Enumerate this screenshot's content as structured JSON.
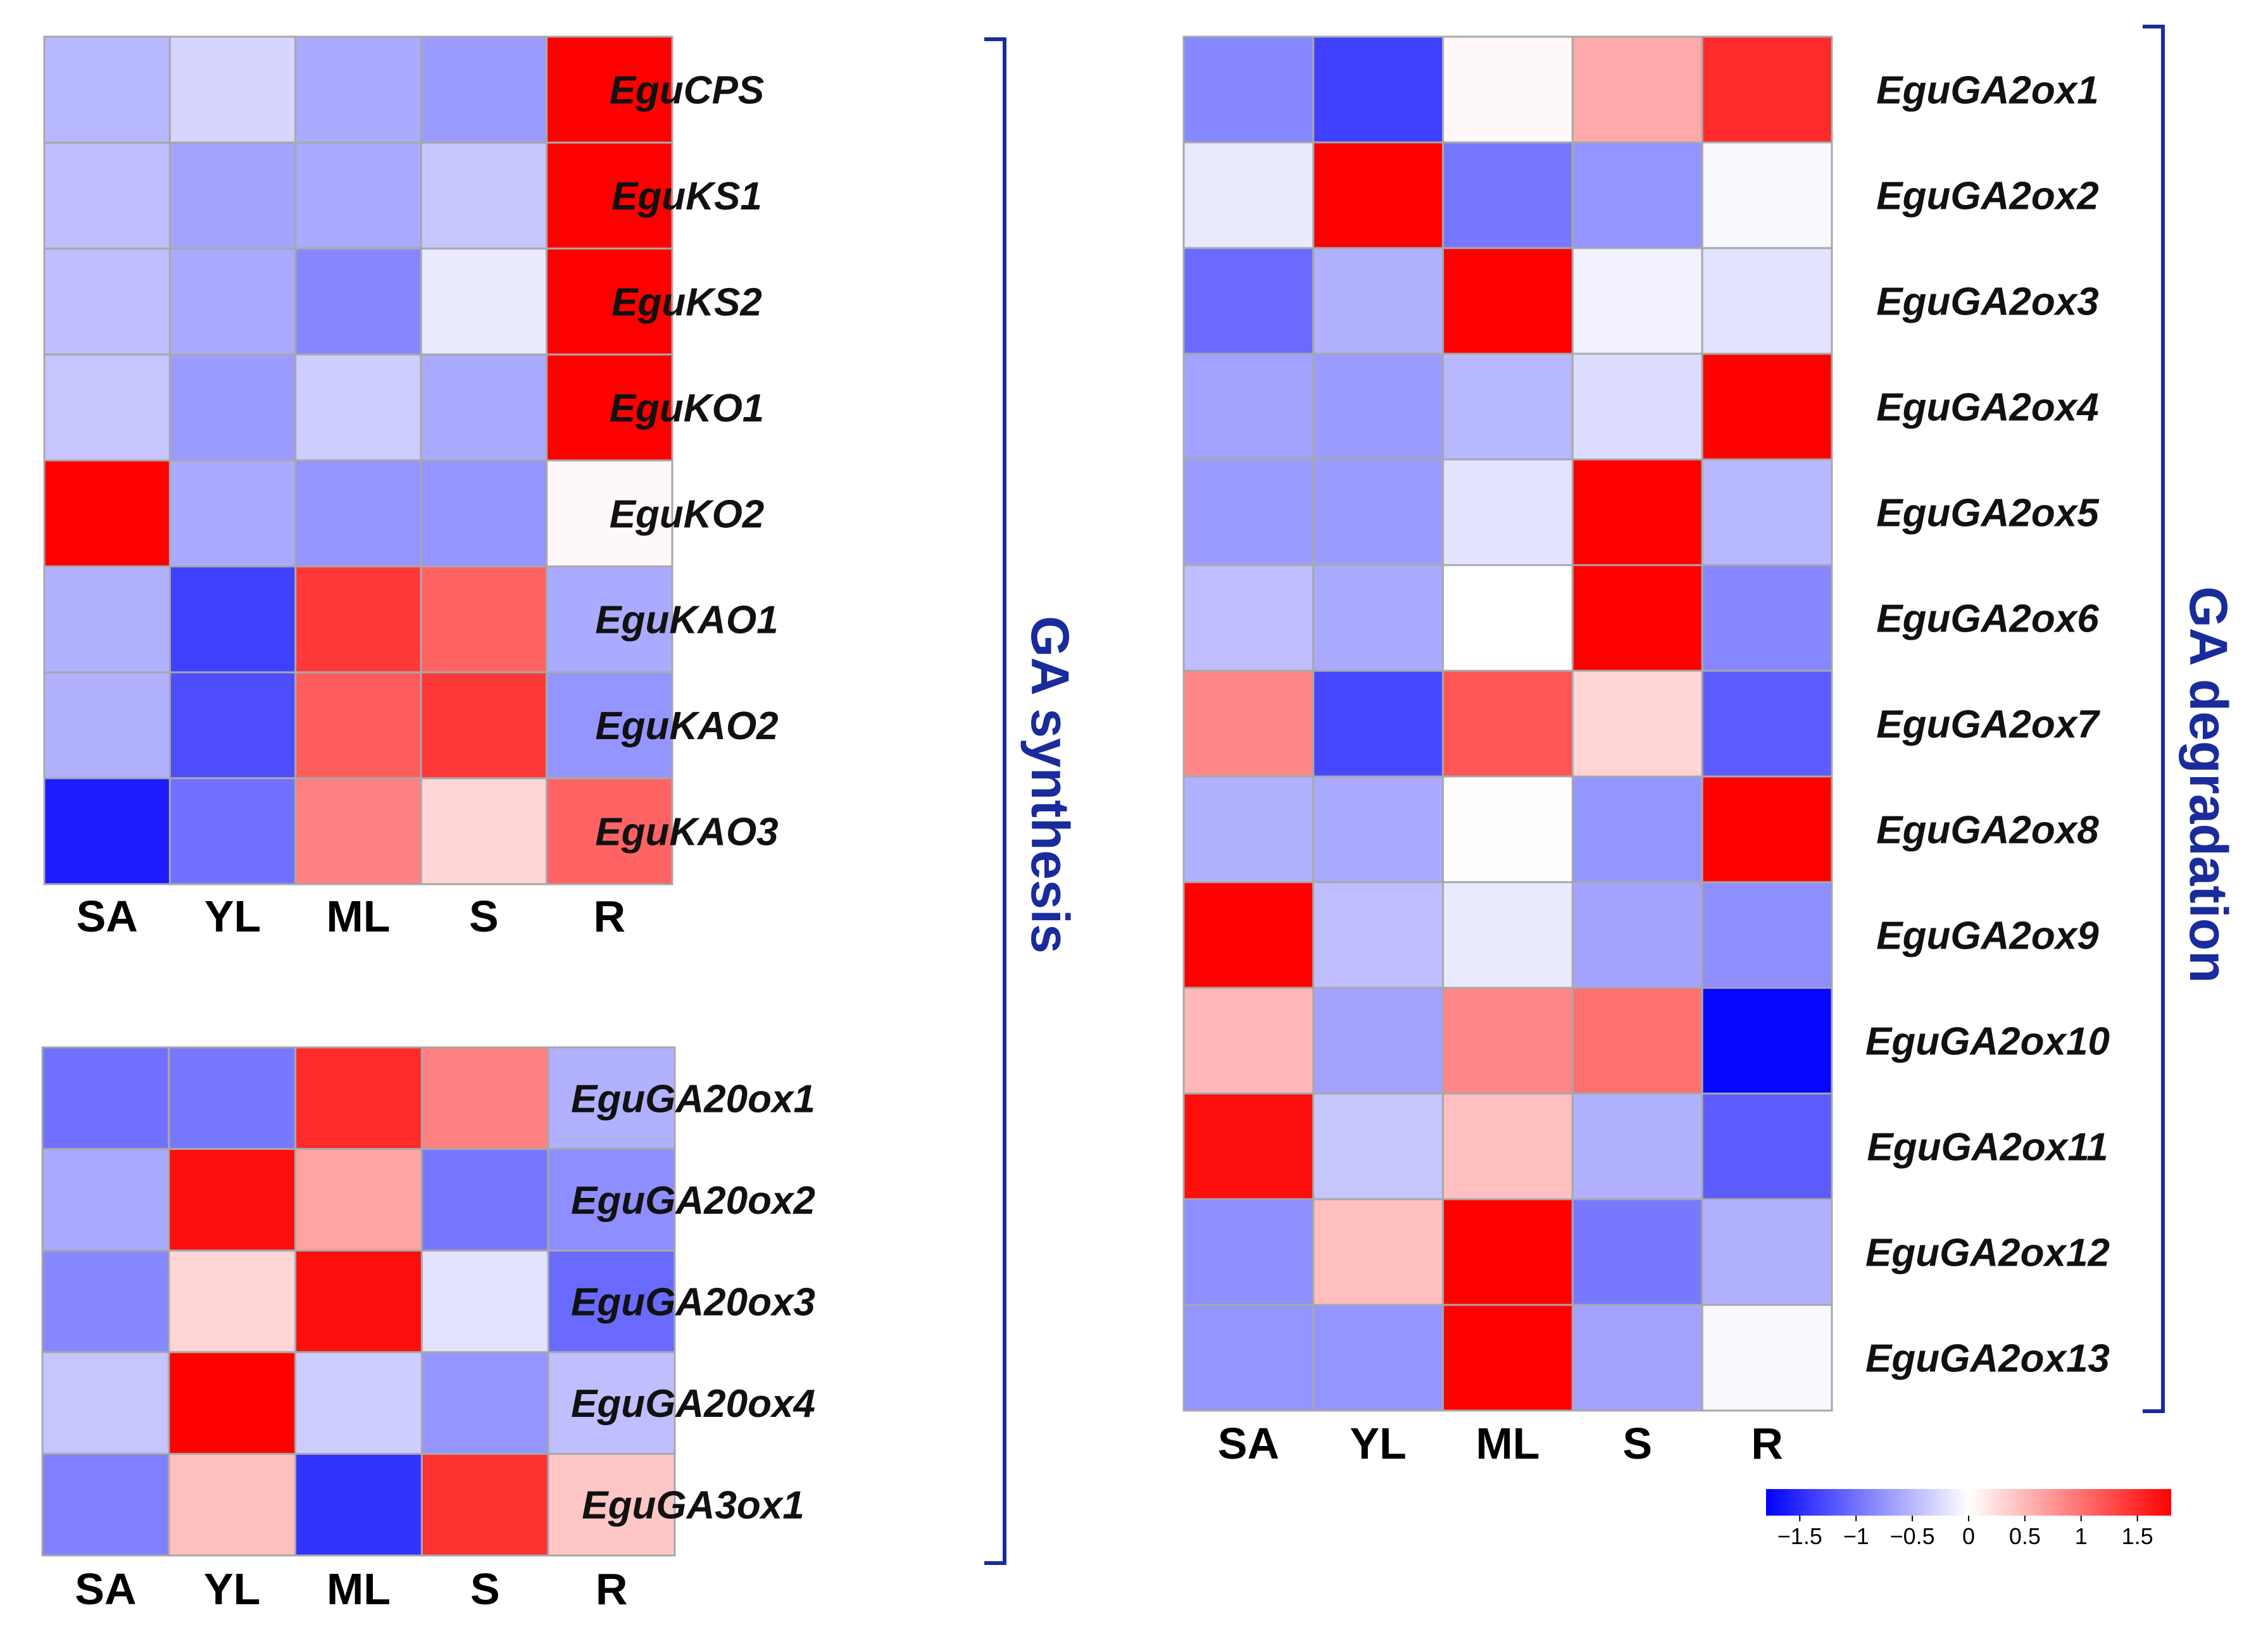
{
  "chart_data": [
    {
      "type": "heatmap",
      "id": "synthesis-top",
      "columns": [
        "SA",
        "YL",
        "ML",
        "S",
        "R"
      ],
      "rows": [
        "EguCPS",
        "EguKS1",
        "EguKS2",
        "EguKO1",
        "EguKO2",
        "EguKAO1",
        "EguKAO2",
        "EguKAO3"
      ],
      "values": [
        [
          -0.5,
          -0.3,
          -0.6,
          -0.7,
          1.9
        ],
        [
          -0.45,
          -0.65,
          -0.6,
          -0.4,
          1.9
        ],
        [
          -0.45,
          -0.6,
          -0.85,
          -0.15,
          1.9
        ],
        [
          -0.4,
          -0.7,
          -0.35,
          -0.6,
          1.9
        ],
        [
          1.9,
          -0.6,
          -0.75,
          -0.75,
          0.05
        ],
        [
          -0.55,
          -1.35,
          1.4,
          1.1,
          -0.6
        ],
        [
          -0.55,
          -1.25,
          1.15,
          1.4,
          -0.75
        ],
        [
          -1.6,
          -1.0,
          0.9,
          0.3,
          1.1
        ]
      ]
    },
    {
      "type": "heatmap",
      "id": "synthesis-bottom",
      "columns": [
        "SA",
        "YL",
        "ML",
        "S",
        "R"
      ],
      "rows": [
        "EguGA20ox1",
        "EguGA20ox2",
        "EguGA20ox3",
        "EguGA20ox4",
        "EguGA3ox1"
      ],
      "values": [
        [
          -1.0,
          -0.95,
          1.5,
          0.9,
          -0.55
        ],
        [
          -0.6,
          1.7,
          0.65,
          -0.95,
          -0.8
        ],
        [
          -0.85,
          0.3,
          1.7,
          -0.2,
          -1.05
        ],
        [
          -0.4,
          1.8,
          -0.35,
          -0.75,
          -0.45
        ],
        [
          -0.9,
          0.45,
          -1.45,
          1.45,
          0.4
        ]
      ]
    },
    {
      "type": "heatmap",
      "id": "degradation",
      "columns": [
        "SA",
        "YL",
        "ML",
        "S",
        "R"
      ],
      "rows": [
        "EguGA2ox1",
        "EguGA2ox2",
        "EguGA2ox3",
        "EguGA2ox4",
        "EguGA2ox5",
        "EguGA2ox6",
        "EguGA2ox7",
        "EguGA2ox8",
        "EguGA2ox9",
        "EguGA2ox10",
        "EguGA2ox11",
        "EguGA2ox12",
        "EguGA2ox13"
      ],
      "values": [
        [
          -0.85,
          -1.35,
          0.05,
          0.6,
          1.5
        ],
        [
          -0.15,
          1.9,
          -0.95,
          -0.75,
          -0.05
        ],
        [
          -1.05,
          -0.55,
          1.9,
          -0.1,
          -0.2
        ],
        [
          -0.65,
          -0.7,
          -0.5,
          -0.25,
          1.9
        ],
        [
          -0.7,
          -0.7,
          -0.2,
          1.9,
          -0.5
        ],
        [
          -0.45,
          -0.6,
          0.0,
          1.9,
          -0.85
        ],
        [
          0.85,
          -1.3,
          1.2,
          0.3,
          -1.15
        ],
        [
          -0.55,
          -0.6,
          0.02,
          -0.75,
          1.9
        ],
        [
          1.9,
          -0.45,
          -0.15,
          -0.65,
          -0.8
        ],
        [
          0.5,
          -0.65,
          0.85,
          1.0,
          -1.75
        ],
        [
          1.7,
          -0.4,
          0.45,
          -0.55,
          -1.15
        ],
        [
          -0.8,
          0.45,
          1.8,
          -0.95,
          -0.55
        ],
        [
          -0.75,
          -0.75,
          1.85,
          -0.65,
          -0.05
        ]
      ]
    }
  ],
  "labels": {
    "synthesis": "GA synthesis",
    "degradation": "GA degradation"
  },
  "colorbar": {
    "ticks": [
      "−1.5",
      "−1",
      "−0.5",
      "0",
      "0.5",
      "1",
      "1.5"
    ],
    "range": [
      -1.8,
      1.8
    ],
    "low_color": "#0000ff",
    "mid_color": "#ffffff",
    "high_color": "#ff0000"
  }
}
